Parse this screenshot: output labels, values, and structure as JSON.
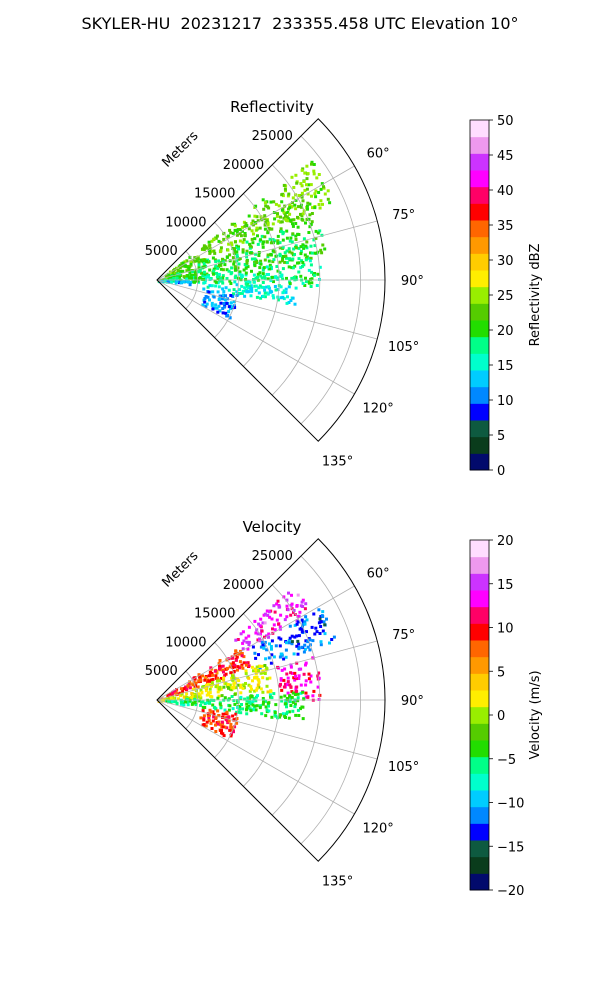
{
  "figure_title": "SKYLER-HU  20231217  233355.458 UTC Elevation 10°",
  "chart_data": [
    {
      "type": "heatmap",
      "projection": "polar-sector",
      "title": "Reflectivity",
      "radial_label": "Meters",
      "radial_ticks": [
        "5000",
        "10000",
        "15000",
        "20000",
        "25000"
      ],
      "radial_values": [
        5000,
        10000,
        15000,
        20000,
        25000
      ],
      "rlim": [
        0,
        28000
      ],
      "azimuth_ticks": [
        "60°",
        "75°",
        "90°",
        "105°",
        "120°",
        "135°"
      ],
      "azimuth_values": [
        60,
        75,
        90,
        105,
        120,
        135
      ],
      "azimuth_range": [
        45,
        135
      ],
      "grid": true,
      "colorbar": {
        "label": "Reflectivity dBZ",
        "range": [
          0,
          50
        ],
        "ticks": [
          "0",
          "5",
          "10",
          "15",
          "20",
          "25",
          "30",
          "35",
          "40",
          "45",
          "50"
        ],
        "tick_values": [
          0,
          5,
          10,
          15,
          20,
          25,
          30,
          35,
          40,
          45,
          50
        ],
        "colors": [
          "#020a6c",
          "#0a3c1c",
          "#0e5a40",
          "#0000ff",
          "#0088ff",
          "#00ccff",
          "#00ffcc",
          "#00ff88",
          "#22dd00",
          "#55cc00",
          "#99ee00",
          "#ffee00",
          "#ffcc00",
          "#ff9900",
          "#ff6600",
          "#ff0000",
          "#ff0066",
          "#ff00ff",
          "#cc33ff",
          "#ee99ee",
          "#ffddff"
        ]
      },
      "echo_regions": [
        {
          "az": [
            52,
            66
          ],
          "r": [
            0,
            24000
          ],
          "value": 23
        },
        {
          "az": [
            66,
            82
          ],
          "r": [
            0,
            21000
          ],
          "value": 20
        },
        {
          "az": [
            82,
            92
          ],
          "r": [
            0,
            20000
          ],
          "value": 18
        },
        {
          "az": [
            92,
            100
          ],
          "r": [
            5500,
            17000
          ],
          "value": 15
        },
        {
          "az": [
            100,
            118
          ],
          "r": [
            6000,
            10000
          ],
          "value": 11
        },
        {
          "az": [
            88,
            96
          ],
          "r": [
            0,
            4000
          ],
          "value": 12
        }
      ]
    },
    {
      "type": "heatmap",
      "projection": "polar-sector",
      "title": "Velocity",
      "radial_label": "Meters",
      "radial_ticks": [
        "5000",
        "10000",
        "15000",
        "20000",
        "25000"
      ],
      "radial_values": [
        5000,
        10000,
        15000,
        20000,
        25000
      ],
      "rlim": [
        0,
        28000
      ],
      "azimuth_ticks": [
        "60°",
        "75°",
        "90°",
        "105°",
        "120°",
        "135°"
      ],
      "azimuth_values": [
        60,
        75,
        90,
        105,
        120,
        135
      ],
      "azimuth_range": [
        45,
        135
      ],
      "grid": true,
      "colorbar": {
        "label": "Velocity (m/s)",
        "range": [
          -20,
          20
        ],
        "ticks": [
          "−20",
          "−15",
          "−10",
          "−5",
          "0",
          "5",
          "10",
          "15",
          "20"
        ],
        "tick_values": [
          -20,
          -15,
          -10,
          -5,
          0,
          5,
          10,
          15,
          20
        ],
        "colors": [
          "#020a6c",
          "#0a3c1c",
          "#0e5a40",
          "#0000ff",
          "#0088ff",
          "#00ccff",
          "#00ffcc",
          "#00ff88",
          "#22dd00",
          "#55cc00",
          "#99ee00",
          "#ffee00",
          "#ffcc00",
          "#ff9900",
          "#ff6600",
          "#ff0000",
          "#ff0066",
          "#ff00ff",
          "#cc33ff",
          "#ee99ee",
          "#ffddff"
        ]
      },
      "echo_regions": [
        {
          "az": [
            50,
            60
          ],
          "r": [
            12000,
            22000
          ],
          "value": 14
        },
        {
          "az": [
            56,
            70
          ],
          "r": [
            0,
            12000
          ],
          "value": 9
        },
        {
          "az": [
            60,
            72
          ],
          "r": [
            13000,
            23000
          ],
          "value": -12
        },
        {
          "az": [
            70,
            85
          ],
          "r": [
            0,
            14000
          ],
          "value": 1
        },
        {
          "az": [
            74,
            90
          ],
          "r": [
            15000,
            20000
          ],
          "value": 12
        },
        {
          "az": [
            86,
            98
          ],
          "r": [
            0,
            18000
          ],
          "value": -5
        },
        {
          "az": [
            98,
            118
          ],
          "r": [
            5500,
            10000
          ],
          "value": 9
        }
      ]
    }
  ]
}
